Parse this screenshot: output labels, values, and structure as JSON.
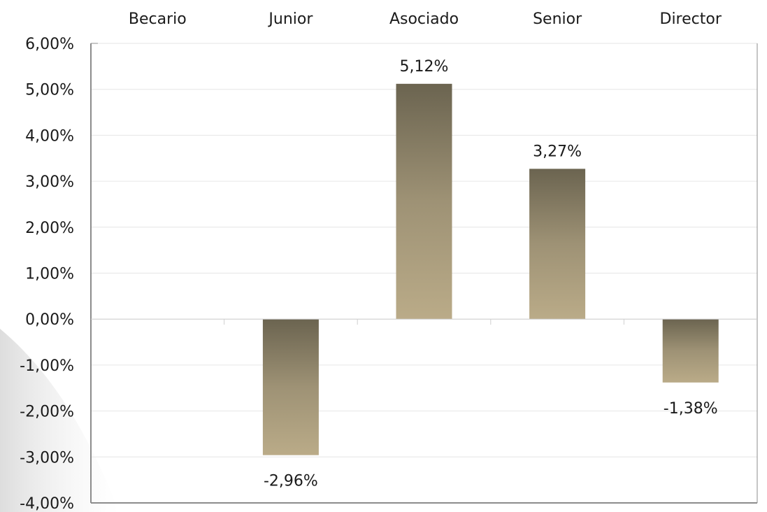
{
  "chart_data": {
    "type": "bar",
    "categories": [
      "Becario",
      "Junior",
      "Asociado",
      "Senior",
      "Director"
    ],
    "values": [
      0,
      -2.96,
      5.12,
      3.27,
      -1.38
    ],
    "data_labels": [
      "",
      "-2,96%",
      "5,12%",
      "3,27%",
      "-1,38%"
    ],
    "ylim": [
      -4,
      6
    ],
    "yticks": [
      6,
      5,
      4,
      3,
      2,
      1,
      0,
      -1,
      -2,
      -3,
      -4
    ],
    "ytick_labels": [
      "6,00%",
      "5,00%",
      "4,00%",
      "3,00%",
      "2,00%",
      "1,00%",
      "0,00%",
      "-1,00%",
      "-2,00%",
      "-3,00%",
      "-4,00%"
    ],
    "category_axis_position": "top",
    "grid": true,
    "legend": "none",
    "colors": {
      "bar_top": "#6b6450",
      "bar_bottom": "#baab88",
      "grid": "#e6e6e6",
      "axis": "#8c8c8c",
      "text": "#1a1a1a"
    }
  }
}
